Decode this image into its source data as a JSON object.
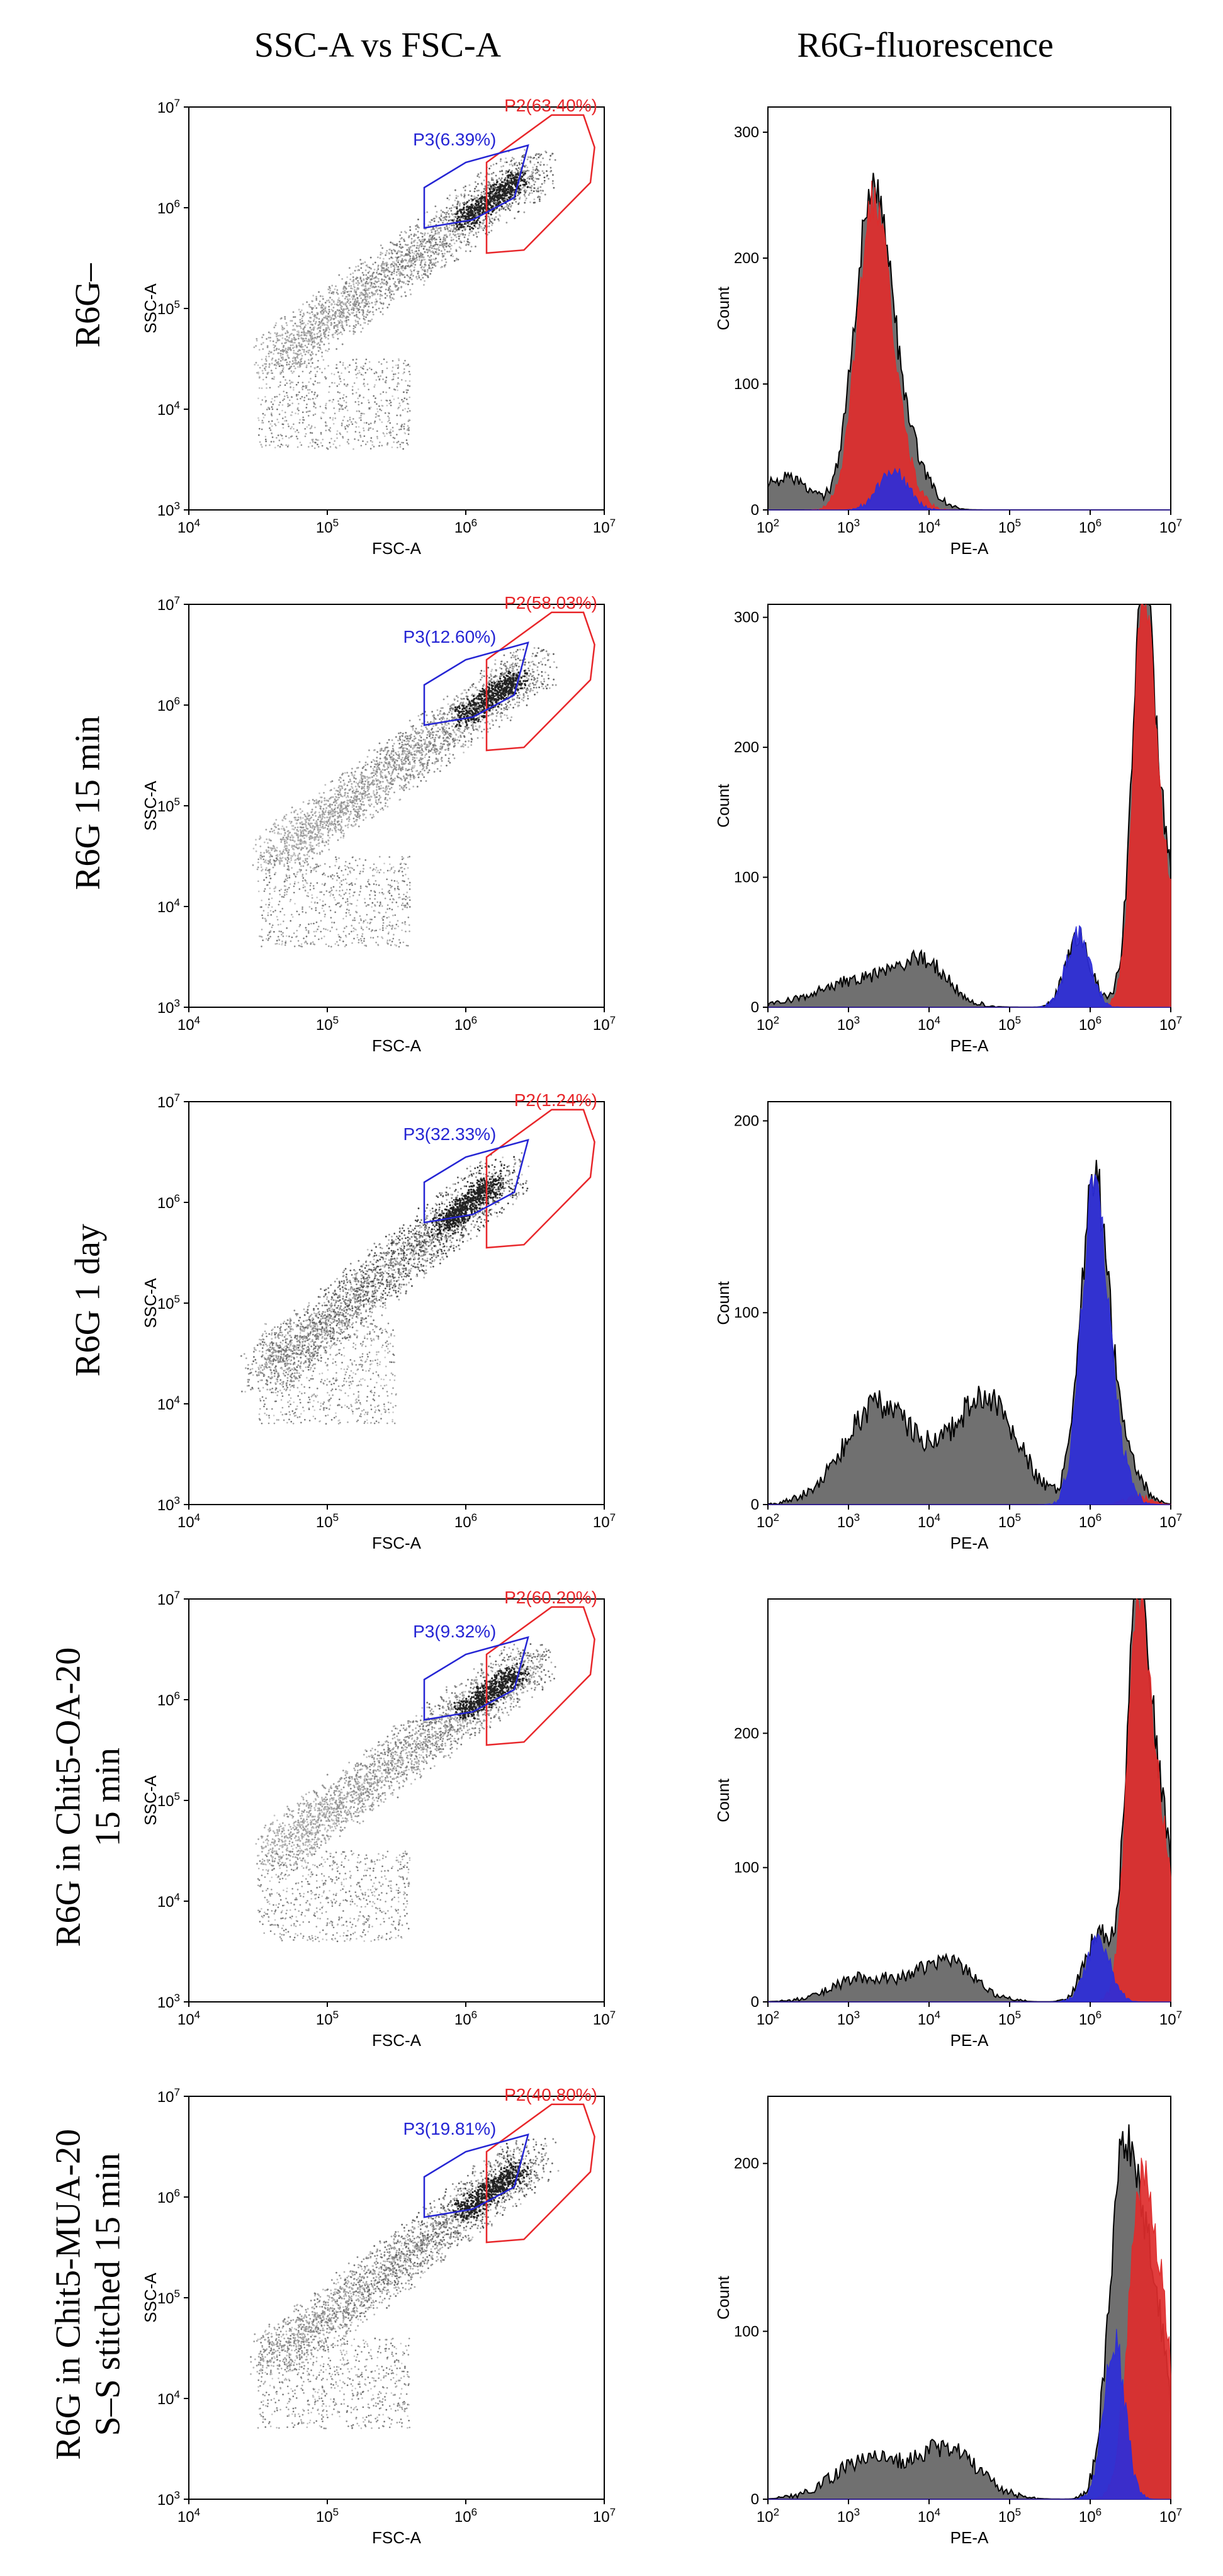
{
  "column_titles": [
    "SSC-A vs FSC-A",
    "R6G-fluorescence"
  ],
  "row_labels": [
    [
      "R6G–"
    ],
    [
      "R6G 15 min"
    ],
    [
      "R6G 1 day"
    ],
    [
      "R6G in Chit5-OA-20",
      "15 min"
    ],
    [
      "R6G in Chit5-MUA-20",
      "S–S stitched 15 min"
    ]
  ],
  "colors": {
    "p2": "#e8262a",
    "p3": "#2525d4",
    "p2_fill": "#de2c2c",
    "p3_fill": "#2d2dd8",
    "total_fill": "#707070"
  },
  "chart_data": [
    {
      "type": "scatter",
      "row": 0,
      "xlabel": "FSC-A",
      "ylabel": "SSC-A",
      "log_x": true,
      "log_y": true,
      "xlim": [
        10000,
        10000000
      ],
      "ylim": [
        1000,
        10000000
      ],
      "x_ticks": [
        "10",
        "10",
        "10",
        "10"
      ],
      "x_tick_exp": [
        "4",
        "5",
        "6",
        "7"
      ],
      "y_ticks": [
        "10",
        "10",
        "10",
        "10",
        "10"
      ],
      "y_tick_exp": [
        "3",
        "4",
        "5",
        "6",
        "7"
      ],
      "density": {
        "main_x": [
          4.62,
          6.5
        ],
        "main_y": [
          4.5,
          6.4
        ],
        "lower_x": [
          4.5,
          5.6
        ],
        "lower_y": [
          3.6,
          4.5
        ],
        "intensity": 0.35
      },
      "gates": [
        {
          "name": "P2",
          "label": "P2(63.40%)",
          "percent": 63.4,
          "polygon": [
            [
              6.15,
              5.6
            ],
            [
              6.15,
              6.45
            ],
            [
              6.62,
              6.92
            ],
            [
              6.85,
              6.92
            ],
            [
              6.93,
              6.6
            ],
            [
              6.9,
              6.25
            ],
            [
              6.42,
              5.58
            ],
            [
              6.15,
              5.55
            ]
          ]
        },
        {
          "name": "P3",
          "label": "P3(6.39%)",
          "percent": 6.39,
          "polygon": [
            [
              5.7,
              5.8
            ],
            [
              5.7,
              6.2
            ],
            [
              6.0,
              6.45
            ],
            [
              6.45,
              6.62
            ],
            [
              6.35,
              6.1
            ],
            [
              6.05,
              5.88
            ]
          ]
        }
      ]
    },
    {
      "type": "scatter",
      "row": 1,
      "xlabel": "FSC-A",
      "ylabel": "SSC-A",
      "log_x": true,
      "log_y": true,
      "xlim": [
        10000,
        10000000
      ],
      "ylim": [
        1000,
        10000000
      ],
      "x_ticks": [
        "10",
        "10",
        "10",
        "10"
      ],
      "x_tick_exp": [
        "4",
        "5",
        "6",
        "7"
      ],
      "y_ticks": [
        "10",
        "10",
        "10",
        "10",
        "10"
      ],
      "y_tick_exp": [
        "3",
        "4",
        "5",
        "6",
        "7"
      ],
      "density": {
        "main_x": [
          4.62,
          6.5
        ],
        "main_y": [
          4.5,
          6.4
        ],
        "lower_x": [
          4.5,
          5.6
        ],
        "lower_y": [
          3.6,
          4.5
        ],
        "intensity": 0.3
      },
      "gates": [
        {
          "name": "P2",
          "label": "P2(58.03%)",
          "percent": 58.03,
          "polygon": [
            [
              6.15,
              5.6
            ],
            [
              6.15,
              6.45
            ],
            [
              6.62,
              6.92
            ],
            [
              6.85,
              6.92
            ],
            [
              6.93,
              6.6
            ],
            [
              6.9,
              6.25
            ],
            [
              6.42,
              5.58
            ],
            [
              6.15,
              5.55
            ]
          ]
        },
        {
          "name": "P3",
          "label": "P3(12.60%)",
          "percent": 12.6,
          "polygon": [
            [
              5.7,
              5.8
            ],
            [
              5.7,
              6.2
            ],
            [
              6.0,
              6.45
            ],
            [
              6.45,
              6.62
            ],
            [
              6.35,
              6.1
            ],
            [
              6.05,
              5.88
            ]
          ]
        }
      ]
    },
    {
      "type": "scatter",
      "row": 2,
      "xlabel": "FSC-A",
      "ylabel": "SSC-A",
      "log_x": true,
      "log_y": true,
      "xlim": [
        10000,
        10000000
      ],
      "ylim": [
        1000,
        10000000
      ],
      "x_ticks": [
        "10",
        "10",
        "10",
        "10"
      ],
      "x_tick_exp": [
        "4",
        "5",
        "6",
        "7"
      ],
      "y_ticks": [
        "10",
        "10",
        "10",
        "10",
        "10"
      ],
      "y_tick_exp": [
        "3",
        "4",
        "5",
        "6",
        "7"
      ],
      "density": {
        "main_x": [
          4.55,
          6.3
        ],
        "main_y": [
          4.3,
          6.3
        ],
        "lower_x": [
          4.5,
          5.5
        ],
        "lower_y": [
          3.8,
          4.8
        ],
        "intensity": 0.6
      },
      "gates": [
        {
          "name": "P2",
          "label": "P2(1.24%)",
          "percent": 1.24,
          "polygon": [
            [
              6.15,
              5.6
            ],
            [
              6.15,
              6.45
            ],
            [
              6.62,
              6.92
            ],
            [
              6.85,
              6.92
            ],
            [
              6.93,
              6.6
            ],
            [
              6.9,
              6.25
            ],
            [
              6.42,
              5.58
            ],
            [
              6.15,
              5.55
            ]
          ]
        },
        {
          "name": "P3",
          "label": "P3(32.33%)",
          "percent": 32.33,
          "polygon": [
            [
              5.7,
              5.8
            ],
            [
              5.7,
              6.2
            ],
            [
              6.0,
              6.45
            ],
            [
              6.45,
              6.62
            ],
            [
              6.35,
              6.1
            ],
            [
              6.05,
              5.88
            ]
          ]
        }
      ]
    },
    {
      "type": "scatter",
      "row": 3,
      "xlabel": "FSC-A",
      "ylabel": "SSC-A",
      "log_x": true,
      "log_y": true,
      "xlim": [
        10000,
        10000000
      ],
      "ylim": [
        1000,
        10000000
      ],
      "x_ticks": [
        "10",
        "10",
        "10",
        "10"
      ],
      "x_tick_exp": [
        "4",
        "5",
        "6",
        "7"
      ],
      "y_ticks": [
        "10",
        "10",
        "10",
        "10",
        "10"
      ],
      "y_tick_exp": [
        "3",
        "4",
        "5",
        "6",
        "7"
      ],
      "density": {
        "main_x": [
          4.62,
          6.5
        ],
        "main_y": [
          4.5,
          6.4
        ],
        "lower_x": [
          4.5,
          5.6
        ],
        "lower_y": [
          3.6,
          4.5
        ],
        "intensity": 0.3
      },
      "gates": [
        {
          "name": "P2",
          "label": "P2(60.20%)",
          "percent": 60.2,
          "polygon": [
            [
              6.15,
              5.6
            ],
            [
              6.15,
              6.45
            ],
            [
              6.62,
              6.92
            ],
            [
              6.85,
              6.92
            ],
            [
              6.93,
              6.6
            ],
            [
              6.9,
              6.25
            ],
            [
              6.42,
              5.58
            ],
            [
              6.15,
              5.55
            ]
          ]
        },
        {
          "name": "P3",
          "label": "P3(9.32%)",
          "percent": 9.32,
          "polygon": [
            [
              5.7,
              5.8
            ],
            [
              5.7,
              6.2
            ],
            [
              6.0,
              6.45
            ],
            [
              6.45,
              6.62
            ],
            [
              6.35,
              6.1
            ],
            [
              6.05,
              5.88
            ]
          ]
        }
      ]
    },
    {
      "type": "scatter",
      "row": 4,
      "xlabel": "FSC-A",
      "ylabel": "SSC-A",
      "log_x": true,
      "log_y": true,
      "xlim": [
        10000,
        10000000
      ],
      "ylim": [
        1000,
        10000000
      ],
      "x_ticks": [
        "10",
        "10",
        "10",
        "10"
      ],
      "x_tick_exp": [
        "4",
        "5",
        "6",
        "7"
      ],
      "y_ticks": [
        "10",
        "10",
        "10",
        "10",
        "10"
      ],
      "y_tick_exp": [
        "3",
        "4",
        "5",
        "6",
        "7"
      ],
      "density": {
        "main_x": [
          4.6,
          6.5
        ],
        "main_y": [
          4.4,
          6.4
        ],
        "lower_x": [
          4.5,
          5.6
        ],
        "lower_y": [
          3.7,
          4.6
        ],
        "intensity": 0.45
      },
      "gates": [
        {
          "name": "P2",
          "label": "P2(40.80%)",
          "percent": 40.8,
          "polygon": [
            [
              6.15,
              5.6
            ],
            [
              6.15,
              6.45
            ],
            [
              6.62,
              6.92
            ],
            [
              6.85,
              6.92
            ],
            [
              6.93,
              6.6
            ],
            [
              6.9,
              6.25
            ],
            [
              6.42,
              5.58
            ],
            [
              6.15,
              5.55
            ]
          ]
        },
        {
          "name": "P3",
          "label": "P3(19.81%)",
          "percent": 19.81,
          "polygon": [
            [
              5.7,
              5.8
            ],
            [
              5.7,
              6.2
            ],
            [
              6.0,
              6.45
            ],
            [
              6.45,
              6.62
            ],
            [
              6.35,
              6.1
            ],
            [
              6.05,
              5.88
            ]
          ]
        }
      ]
    },
    {
      "type": "area",
      "row": 0,
      "xlabel": "PE-A",
      "ylabel": "Count",
      "log_x": true,
      "xlim": [
        100,
        10000000
      ],
      "ylim": [
        0,
        320
      ],
      "y_ticks": [
        "0",
        "100",
        "200",
        "300"
      ],
      "x_ticks": [
        "10",
        "10",
        "10",
        "10",
        "10",
        "10"
      ],
      "x_tick_exp": [
        "2",
        "3",
        "4",
        "5",
        "6",
        "7"
      ],
      "series": [
        {
          "name": "All",
          "peaks": [
            [
              2.2,
              25,
              0.3
            ],
            [
              3.3,
              250,
              0.22
            ],
            [
              3.7,
              45,
              0.25
            ]
          ]
        },
        {
          "name": "P2",
          "peaks": [
            [
              3.3,
              235,
              0.2
            ],
            [
              3.6,
              40,
              0.2
            ]
          ]
        },
        {
          "name": "P3",
          "peaks": [
            [
              3.55,
              32,
              0.18
            ]
          ]
        }
      ]
    },
    {
      "type": "area",
      "row": 1,
      "xlabel": "PE-A",
      "ylabel": "Count",
      "log_x": true,
      "xlim": [
        100,
        10000000
      ],
      "ylim": [
        0,
        310
      ],
      "y_ticks": [
        "0",
        "100",
        "200",
        "300"
      ],
      "x_ticks": [
        "10",
        "10",
        "10",
        "10",
        "10",
        "10"
      ],
      "x_tick_exp": [
        "2",
        "3",
        "4",
        "5",
        "6",
        "7"
      ],
      "series": [
        {
          "name": "All",
          "peaks": [
            [
              3.2,
              22,
              0.55
            ],
            [
              3.95,
              28,
              0.3
            ],
            [
              5.85,
              55,
              0.15
            ],
            [
              6.65,
              250,
              0.12
            ],
            [
              6.85,
              130,
              0.25
            ]
          ]
        },
        {
          "name": "P2",
          "peaks": [
            [
              6.65,
              240,
              0.12
            ],
            [
              6.85,
              120,
              0.22
            ]
          ]
        },
        {
          "name": "P3",
          "peaks": [
            [
              5.85,
              55,
              0.15
            ]
          ]
        }
      ]
    },
    {
      "type": "area",
      "row": 2,
      "xlabel": "PE-A",
      "ylabel": "Count",
      "log_x": true,
      "xlim": [
        100,
        10000000
      ],
      "ylim": [
        0,
        210
      ],
      "y_ticks": [
        "0",
        "100",
        "200"
      ],
      "x_ticks": [
        "10",
        "10",
        "10",
        "10",
        "10",
        "10"
      ],
      "x_tick_exp": [
        "2",
        "3",
        "4",
        "5",
        "6",
        "7"
      ],
      "series": [
        {
          "name": "All",
          "peaks": [
            [
              3.4,
              52,
              0.45
            ],
            [
              4.7,
              55,
              0.4
            ],
            [
              6.05,
              165,
              0.17
            ],
            [
              6.4,
              25,
              0.2
            ]
          ]
        },
        {
          "name": "P2",
          "peaks": [
            [
              6.6,
              4,
              0.15
            ]
          ]
        },
        {
          "name": "P3",
          "peaks": [
            [
              6.05,
              162,
              0.16
            ],
            [
              6.35,
              20,
              0.15
            ]
          ]
        }
      ]
    },
    {
      "type": "area",
      "row": 3,
      "xlabel": "PE-A",
      "ylabel": "Count",
      "log_x": true,
      "xlim": [
        100,
        10000000
      ],
      "ylim": [
        0,
        300
      ],
      "y_ticks": [
        "0",
        "100",
        "200"
      ],
      "x_ticks": [
        "10",
        "10",
        "10",
        "10",
        "10",
        "10"
      ],
      "x_tick_exp": [
        "2",
        "3",
        "4",
        "5",
        "6",
        "7"
      ],
      "series": [
        {
          "name": "All",
          "peaks": [
            [
              3.2,
              18,
              0.4
            ],
            [
              4.2,
              30,
              0.35
            ],
            [
              6.1,
              50,
              0.17
            ],
            [
              6.58,
              235,
              0.13
            ],
            [
              6.82,
              150,
              0.22
            ]
          ]
        },
        {
          "name": "P2",
          "peaks": [
            [
              6.58,
              230,
              0.13
            ],
            [
              6.82,
              140,
              0.2
            ]
          ]
        },
        {
          "name": "P3",
          "peaks": [
            [
              6.1,
              45,
              0.15
            ]
          ]
        }
      ]
    },
    {
      "type": "area",
      "row": 4,
      "xlabel": "PE-A",
      "ylabel": "Count",
      "log_x": true,
      "xlim": [
        100,
        10000000
      ],
      "ylim": [
        0,
        240
      ],
      "y_ticks": [
        "0",
        "100",
        "200"
      ],
      "x_ticks": [
        "10",
        "10",
        "10",
        "10",
        "10",
        "10"
      ],
      "x_tick_exp": [
        "2",
        "3",
        "4",
        "5",
        "6",
        "7"
      ],
      "series": [
        {
          "name": "All",
          "peaks": [
            [
              3.2,
              22,
              0.4
            ],
            [
              4.2,
              30,
              0.4
            ],
            [
              6.4,
              185,
              0.17
            ],
            [
              6.75,
              125,
              0.2
            ]
          ]
        },
        {
          "name": "P2",
          "peaks": [
            [
              6.6,
              140,
              0.15
            ],
            [
              6.85,
              110,
              0.18
            ]
          ]
        },
        {
          "name": "P3",
          "peaks": [
            [
              6.3,
              95,
              0.13
            ]
          ]
        }
      ]
    }
  ]
}
